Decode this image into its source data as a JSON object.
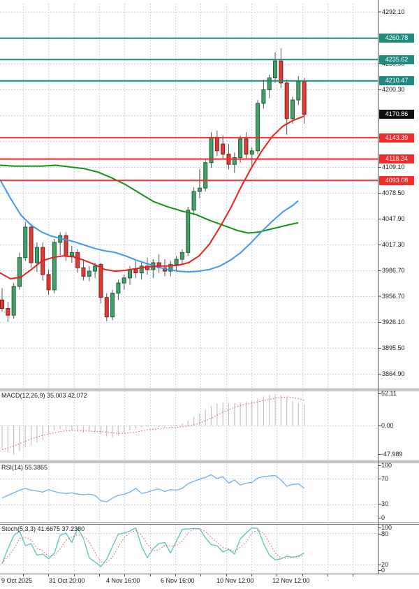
{
  "chart_data": {
    "type": "candlestick",
    "title_labels": {
      "macd_label": "MACD(12,26,9) 35.003 42.072",
      "rsi_label": "RSI(14) 55.3865",
      "stoch_label": "Stoch(5,3,3) 41.6675 37.2380"
    },
    "price_axis": {
      "ticks": [
        {
          "label": "4292.10",
          "price": 4292.1
        },
        {
          "label": "4230.90",
          "price": 4230.9
        },
        {
          "label": "4200.30",
          "price": 4200.3
        },
        {
          "label": "4109.10",
          "price": 4109.1
        },
        {
          "label": "4078.50",
          "price": 4078.5
        },
        {
          "label": "4047.90",
          "price": 4047.9
        },
        {
          "label": "4017.30",
          "price": 4017.3
        },
        {
          "label": "3986.70",
          "price": 3986.7
        },
        {
          "label": "3956.70",
          "price": 3956.7
        },
        {
          "label": "3926.10",
          "price": 3926.1
        },
        {
          "label": "3895.50",
          "price": 3895.5
        },
        {
          "label": "3864.90",
          "price": 3864.9
        }
      ]
    },
    "levels": [
      {
        "label": "4260.78",
        "price": 4260.78,
        "kind": "resistance"
      },
      {
        "label": "4235.62",
        "price": 4235.62,
        "kind": "resistance"
      },
      {
        "label": "4210.47",
        "price": 4210.47,
        "kind": "resistance"
      },
      {
        "label": "4170.86",
        "price": 4170.86,
        "kind": "current"
      },
      {
        "label": "4143.39",
        "price": 4143.39,
        "kind": "support"
      },
      {
        "label": "4118.24",
        "price": 4118.24,
        "kind": "support"
      },
      {
        "label": "4093.08",
        "price": 4093.08,
        "kind": "support"
      }
    ],
    "x_axis": {
      "labels": [
        "9 Oct 2025",
        "31 Oct 20:00",
        "4 Nov 16:00",
        "6 Nov 16:00",
        "10 Nov 12:00",
        "12 Nov 12:00"
      ]
    },
    "candles_ohlc": [
      [
        3952,
        3966,
        3938,
        3942
      ],
      [
        3942,
        3950,
        3926,
        3934
      ],
      [
        3934,
        3972,
        3930,
        3968
      ],
      [
        3968,
        4008,
        3964,
        4002
      ],
      [
        4002,
        4044,
        3998,
        4038
      ],
      [
        4038,
        4042,
        3990,
        3996
      ],
      [
        3996,
        4020,
        3985,
        4014
      ],
      [
        4014,
        4020,
        3975,
        3982
      ],
      [
        3982,
        3988,
        3958,
        3964
      ],
      [
        3964,
        4024,
        3960,
        4020
      ],
      [
        4020,
        4032,
        4005,
        4028
      ],
      [
        4028,
        4032,
        3998,
        4004
      ],
      [
        4004,
        4016,
        3996,
        4008
      ],
      [
        4008,
        4012,
        3984,
        3990
      ],
      [
        3990,
        3998,
        3975,
        3980
      ],
      [
        3980,
        3992,
        3974,
        3986
      ],
      [
        3986,
        3996,
        3978,
        3992
      ],
      [
        3994,
        3996,
        3948,
        3955
      ],
      [
        3955,
        3960,
        3927,
        3932
      ],
      [
        3932,
        3964,
        3928,
        3960
      ],
      [
        3960,
        3976,
        3952,
        3972
      ],
      [
        3972,
        3982,
        3964,
        3978
      ],
      [
        3978,
        3992,
        3970,
        3988
      ],
      [
        3988,
        3998,
        3978,
        3984
      ],
      [
        3984,
        3996,
        3976,
        3992
      ],
      [
        3992,
        4002,
        3982,
        3988
      ],
      [
        3988,
        4000,
        3978,
        3996
      ],
      [
        3996,
        4006,
        3984,
        3990
      ],
      [
        3990,
        4000,
        3980,
        3986
      ],
      [
        3986,
        3998,
        3980,
        3994
      ],
      [
        3994,
        4004,
        3986,
        4000
      ],
      [
        4000,
        4012,
        3994,
        4008
      ],
      [
        4008,
        4062,
        4004,
        4058
      ],
      [
        4058,
        4085,
        4052,
        4080
      ],
      [
        4080,
        4106,
        4072,
        4084
      ],
      [
        4084,
        4118,
        4080,
        4114
      ],
      [
        4114,
        4150,
        4108,
        4144
      ],
      [
        4144,
        4152,
        4122,
        4128
      ],
      [
        4136,
        4146,
        4118,
        4124
      ],
      [
        4124,
        4136,
        4106,
        4112
      ],
      [
        4112,
        4126,
        4102,
        4120
      ],
      [
        4120,
        4146,
        4114,
        4142
      ],
      [
        4142,
        4150,
        4118,
        4124
      ],
      [
        4124,
        4132,
        4110,
        4128
      ],
      [
        4128,
        4188,
        4124,
        4184
      ],
      [
        4184,
        4212,
        4178,
        4200
      ],
      [
        4200,
        4218,
        4190,
        4214
      ],
      [
        4214,
        4244,
        4208,
        4234
      ],
      [
        4234,
        4249,
        4202,
        4208
      ],
      [
        4208,
        4212,
        4147,
        4166
      ],
      [
        4166,
        4192,
        4160,
        4188
      ],
      [
        4188,
        4216,
        4182,
        4210
      ],
      [
        4210,
        4214,
        4160,
        4171
      ]
    ],
    "moving_averages": {
      "fast_red": [
        [
          0,
          3984
        ],
        [
          15,
          3977
        ],
        [
          30,
          3979
        ],
        [
          45,
          3988
        ],
        [
          60,
          3998
        ],
        [
          75,
          4002
        ],
        [
          90,
          4004
        ],
        [
          105,
          4003
        ],
        [
          120,
          3999
        ],
        [
          135,
          3994
        ],
        [
          150,
          3988
        ],
        [
          165,
          3986
        ],
        [
          180,
          3987
        ],
        [
          195,
          3989
        ],
        [
          210,
          3991
        ],
        [
          225,
          3992
        ],
        [
          240,
          3992
        ],
        [
          255,
          3993
        ],
        [
          270,
          3996
        ],
        [
          285,
          4004
        ],
        [
          300,
          4018
        ],
        [
          315,
          4038
        ],
        [
          330,
          4060
        ],
        [
          345,
          4085
        ],
        [
          360,
          4108
        ],
        [
          375,
          4128
        ],
        [
          390,
          4145
        ],
        [
          405,
          4157
        ],
        [
          420,
          4164
        ],
        [
          436,
          4169
        ]
      ],
      "mid_blue": [
        [
          0,
          4094
        ],
        [
          15,
          4072
        ],
        [
          30,
          4052
        ],
        [
          45,
          4040
        ],
        [
          60,
          4032
        ],
        [
          75,
          4027
        ],
        [
          90,
          4024
        ],
        [
          105,
          4021
        ],
        [
          120,
          4017
        ],
        [
          135,
          4013
        ],
        [
          150,
          4010
        ],
        [
          165,
          4008
        ],
        [
          180,
          4004
        ],
        [
          195,
          3999
        ],
        [
          210,
          3995
        ],
        [
          225,
          3991
        ],
        [
          240,
          3988
        ],
        [
          255,
          3986
        ],
        [
          270,
          3985
        ],
        [
          285,
          3986
        ],
        [
          300,
          3988
        ],
        [
          315,
          3992
        ],
        [
          330,
          3999
        ],
        [
          345,
          4008
        ],
        [
          360,
          4020
        ],
        [
          375,
          4033
        ],
        [
          390,
          4045
        ],
        [
          405,
          4056
        ],
        [
          420,
          4064
        ],
        [
          427,
          4069
        ]
      ],
      "slow_green": [
        [
          0,
          4111
        ],
        [
          20,
          4110
        ],
        [
          40,
          4110
        ],
        [
          60,
          4110
        ],
        [
          80,
          4111
        ],
        [
          100,
          4109
        ],
        [
          120,
          4107
        ],
        [
          140,
          4103
        ],
        [
          160,
          4096
        ],
        [
          180,
          4088
        ],
        [
          200,
          4078
        ],
        [
          220,
          4068
        ],
        [
          240,
          4062
        ],
        [
          260,
          4057
        ],
        [
          280,
          4053
        ],
        [
          300,
          4046
        ],
        [
          320,
          4040
        ],
        [
          340,
          4034
        ],
        [
          355,
          4031
        ],
        [
          370,
          4032
        ],
        [
          385,
          4035
        ],
        [
          400,
          4038
        ],
        [
          415,
          4041
        ],
        [
          427,
          4043
        ]
      ]
    },
    "macd": {
      "label": "MACD(12,26,9) 35.003 42.072",
      "axis": [
        "52.11",
        "0.00",
        "-47.989"
      ],
      "histogram": [
        -38,
        -44,
        -48,
        -42,
        -36,
        -32,
        -28,
        -24,
        -12,
        -8,
        -6,
        -7,
        -8,
        -10,
        -12,
        -11,
        -10,
        -14,
        -18,
        -20,
        -16,
        -12,
        -8,
        -5,
        -3,
        -2,
        -1,
        -2,
        -3,
        -2,
        1,
        3,
        8,
        14,
        20,
        26,
        32,
        36,
        38,
        37,
        36,
        38,
        39,
        40,
        44,
        48,
        50,
        52,
        50,
        46,
        40,
        37,
        35
      ],
      "signal": [
        -40,
        -37,
        -34,
        -30,
        -26,
        -22,
        -19,
        -16,
        -14,
        -12,
        -10,
        -9,
        -8,
        -8,
        -9,
        -9,
        -10,
        -10,
        -11,
        -12,
        -13,
        -13,
        -12,
        -11,
        -9,
        -7,
        -6,
        -5,
        -4,
        -3,
        -3,
        -2,
        -1,
        1,
        4,
        8,
        12,
        17,
        22,
        26,
        30,
        33,
        35,
        37,
        39,
        41,
        43,
        45,
        46,
        47,
        46,
        44,
        42
      ]
    },
    "rsi": {
      "label": "RSI(14) 55.3865",
      "axis": [
        "100",
        "70",
        "30",
        "0"
      ],
      "levels": [
        70,
        30
      ],
      "values": [
        40,
        44,
        48,
        52,
        55,
        52,
        51,
        49,
        53,
        50,
        48,
        47,
        48,
        46,
        45,
        46,
        44,
        36,
        34,
        40,
        44,
        46,
        49,
        55,
        47,
        49,
        52,
        54,
        50,
        53,
        52,
        55,
        62,
        66,
        69,
        72,
        76,
        70,
        73,
        63,
        68,
        60,
        63,
        64,
        71,
        73,
        74,
        75,
        68,
        58,
        61,
        62,
        55
      ]
    },
    "stoch": {
      "label": "Stoch(5,3,3) 41.6675 37.2380",
      "axis": [
        "100",
        "80",
        "20",
        "0"
      ],
      "levels": [
        80,
        20
      ],
      "k": [
        22,
        50,
        75,
        84,
        56,
        60,
        38,
        40,
        31,
        42,
        76,
        80,
        62,
        89,
        70,
        33,
        25,
        16,
        30,
        55,
        78,
        80,
        84,
        90,
        55,
        33,
        50,
        60,
        62,
        42,
        65,
        87,
        88,
        89,
        88,
        71,
        58,
        56,
        44,
        49,
        40,
        69,
        80,
        90,
        89,
        60,
        38,
        29,
        31,
        36,
        34,
        36,
        42
      ],
      "d": [
        22,
        36,
        49,
        70,
        72,
        67,
        51,
        46,
        36,
        38,
        50,
        66,
        73,
        77,
        74,
        64,
        43,
        25,
        24,
        34,
        54,
        71,
        81,
        85,
        76,
        59,
        46,
        48,
        57,
        55,
        56,
        65,
        80,
        88,
        88,
        83,
        72,
        62,
        53,
        50,
        44,
        53,
        63,
        80,
        86,
        80,
        62,
        42,
        33,
        32,
        34,
        35,
        37
      ]
    },
    "colors": {
      "resistance": "#1e8a7e",
      "support": "#f22b2b",
      "current_badge": "#111111",
      "bull_fill": "#47a067",
      "bull_border": "#1d5c38",
      "bear_fill": "#e23b32",
      "bear_border": "#7e1f1c",
      "wick": "#555555",
      "ma_fast": "#e8201a",
      "ma_mid": "#3d97f5",
      "ma_slow": "#15920f",
      "macd_hist": "#c2c2c2",
      "macd_signal": "#e05050",
      "rsi_line": "#6aaef5",
      "stoch_k": "#53c6bc",
      "stoch_d": "#e05050",
      "grid": "#c8d3ec"
    }
  }
}
